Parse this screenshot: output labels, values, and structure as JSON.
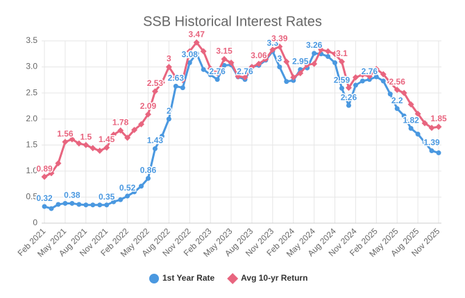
{
  "chart_data": {
    "type": "line",
    "title": "SSB Historical Interest Rates",
    "categories": [
      "Feb 2021",
      null,
      null,
      "May 2021",
      null,
      null,
      "Aug 2021",
      null,
      null,
      "Nov 2021",
      null,
      null,
      "Feb 2022",
      null,
      null,
      "May 2022",
      null,
      null,
      "Aug 2022",
      null,
      null,
      "Nov 2022",
      null,
      null,
      "Feb 2023",
      null,
      null,
      "May 2023",
      null,
      null,
      "Aug 2023",
      null,
      null,
      "Nov 2023",
      null,
      null,
      "Feb 2024",
      null,
      null,
      "May 2024",
      null,
      null,
      "Aug 2024",
      null,
      null,
      "Nov 2024",
      null,
      null,
      "Feb 2025",
      null,
      null,
      "May 2025",
      null,
      null,
      "Aug 2025",
      null,
      null,
      "Nov 2025"
    ],
    "series": [
      {
        "name": "1st Year Rate",
        "color": "#4a98e0",
        "marker": "circle",
        "values": [
          0.32,
          0.28,
          0.36,
          0.38,
          0.38,
          0.36,
          0.35,
          0.35,
          0.35,
          0.35,
          0.41,
          0.45,
          0.52,
          0.6,
          0.71,
          0.86,
          1.43,
          1.67,
          2.0,
          2.63,
          2.6,
          3.08,
          3.26,
          2.95,
          2.85,
          2.76,
          3.03,
          3.04,
          2.81,
          2.76,
          3.0,
          3.03,
          3.13,
          3.3,
          3.0,
          2.72,
          2.74,
          2.95,
          2.98,
          3.26,
          3.25,
          3.2,
          3.08,
          2.59,
          2.26,
          2.65,
          2.73,
          2.76,
          2.81,
          2.73,
          2.48,
          2.2,
          2.06,
          1.82,
          1.71,
          1.55,
          1.39,
          1.35
        ]
      },
      {
        "name": "Avg 10-yr Return",
        "color": "#e8657f",
        "marker": "diamond",
        "values": [
          0.89,
          0.96,
          1.15,
          1.56,
          1.61,
          1.53,
          1.5,
          1.44,
          1.39,
          1.45,
          1.7,
          1.78,
          1.64,
          1.79,
          1.9,
          2.09,
          2.53,
          2.7,
          3.0,
          2.8,
          2.75,
          3.3,
          3.47,
          3.3,
          2.97,
          2.88,
          3.15,
          3.08,
          2.82,
          2.8,
          3.0,
          3.06,
          3.15,
          3.33,
          3.39,
          3.1,
          2.8,
          2.88,
          3.04,
          3.06,
          3.33,
          3.3,
          3.25,
          3.1,
          2.6,
          2.8,
          2.85,
          2.82,
          2.96,
          2.86,
          2.7,
          2.56,
          2.5,
          2.28,
          2.1,
          1.92,
          1.83,
          1.85
        ]
      }
    ],
    "ylim": [
      0,
      3.5
    ],
    "yticks": [
      0,
      0.5,
      {
        "value": 1,
        "label": "1.0"
      },
      1.5,
      {
        "value": 2,
        "label": "2.0"
      },
      2.5,
      {
        "value": 3,
        "label": "3.0"
      },
      3.5
    ],
    "grid": true,
    "legend": "bottom"
  }
}
